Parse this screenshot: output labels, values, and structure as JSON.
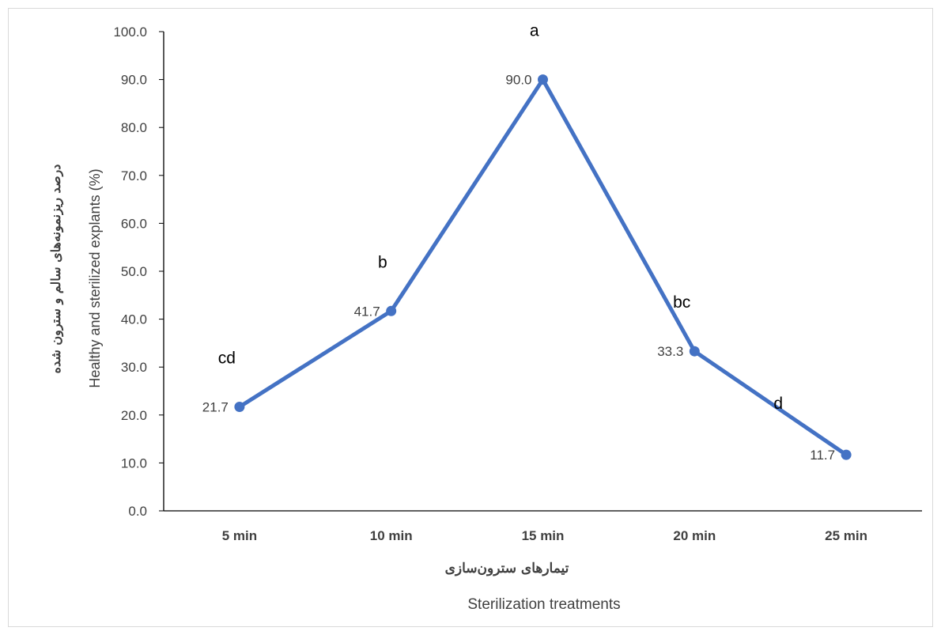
{
  "chart_data": {
    "type": "line",
    "categories": [
      "5 min",
      "10 min",
      "15 min",
      "20 min",
      "25 min"
    ],
    "series": [
      {
        "values": [
          21.7,
          41.7,
          90.0,
          33.3,
          11.7
        ]
      }
    ],
    "data_labels": [
      "21.7",
      "41.7",
      "90.0",
      "33.3",
      "11.7"
    ],
    "significance_letters": [
      "cd",
      "b",
      "a",
      "bc",
      "d"
    ],
    "ylim": [
      0,
      100
    ],
    "yticks": [
      "0.0",
      "10.0",
      "20.0",
      "30.0",
      "40.0",
      "50.0",
      "60.0",
      "70.0",
      "80.0",
      "90.0",
      "100.0"
    ],
    "ylabel_en": "Healthy and sterilized explants  (%)",
    "ylabel_fa": "درصد ریزنمونه‌های سالم و سترون شده",
    "xlabel_en": "Sterilization treatments",
    "xlabel_fa": "تیمارهای سترون‌سازی",
    "grid": false,
    "line_color": "#4472c4"
  }
}
